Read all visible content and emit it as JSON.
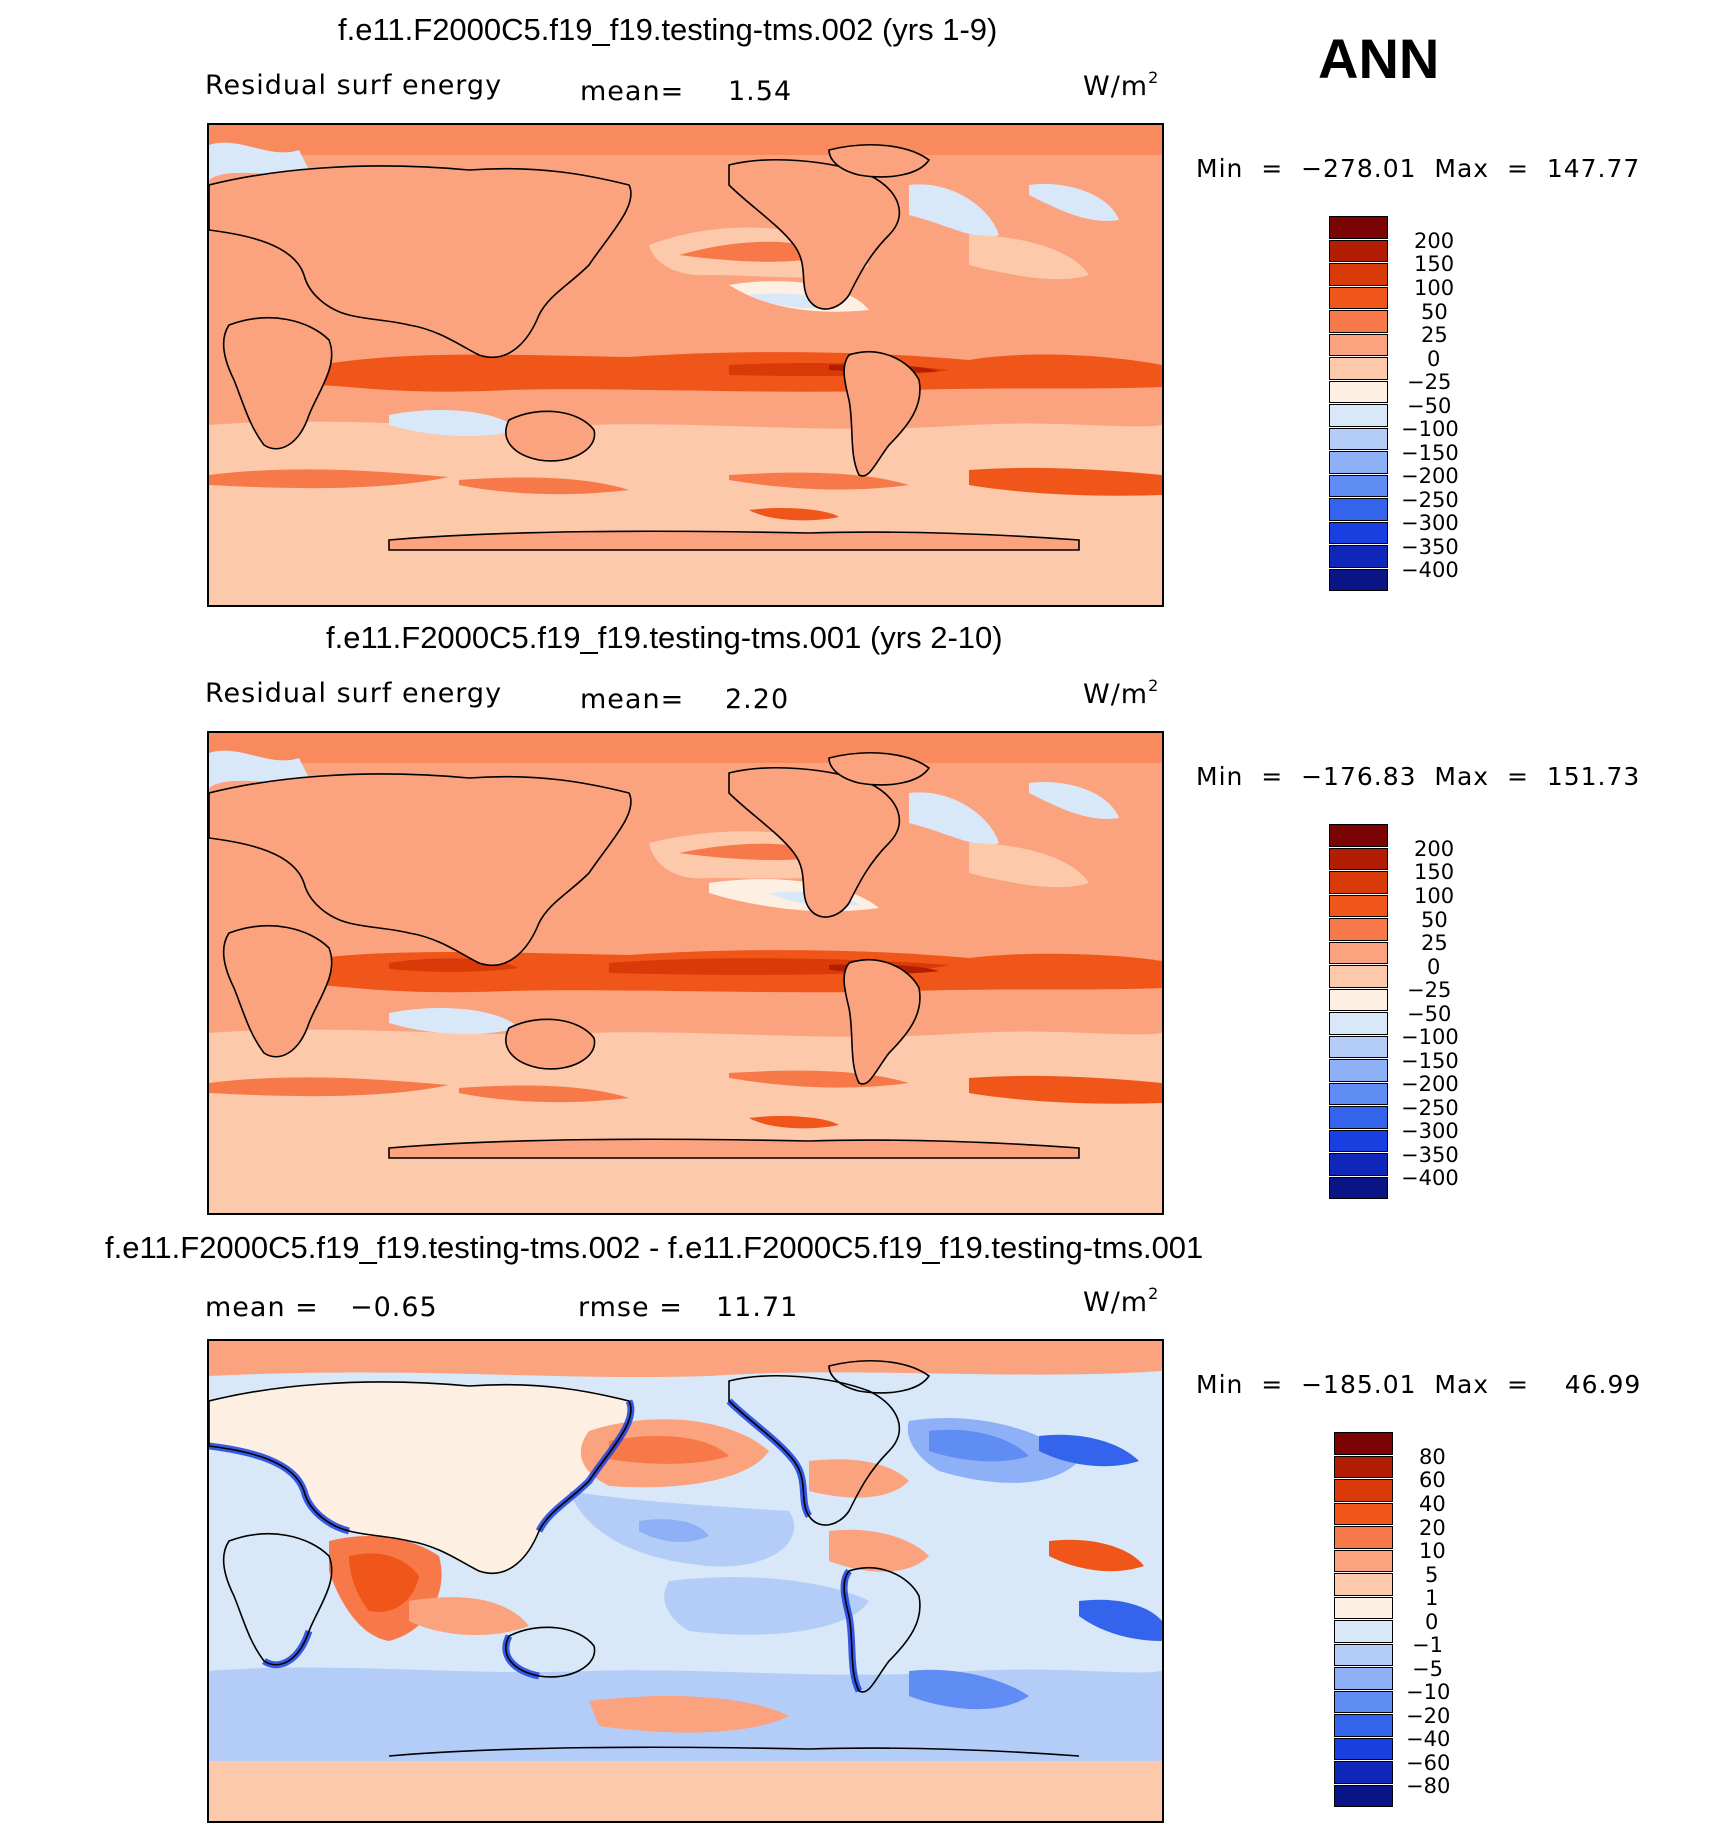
{
  "season": "ANN",
  "units_base": "W/m",
  "units_exp": "2",
  "panels": [
    {
      "title": "f.e11.F2000C5.f19_f19.testing-tms.002 (yrs 1-9)",
      "variable": "Residual surf energy",
      "stat_label": "mean=",
      "stat_value": "1.54",
      "minmax": "Min  =  −278.01  Max  =  147.77",
      "mean_field": 1.54,
      "min": -278.01,
      "max": 147.77
    },
    {
      "title": "f.e11.F2000C5.f19_f19.testing-tms.001 (yrs 2-10)",
      "variable": "Residual surf energy",
      "stat_label": "mean=",
      "stat_value": "2.20",
      "minmax": "Min  =  −176.83  Max  =  151.73",
      "mean_field": 2.2,
      "min": -176.83,
      "max": 151.73
    },
    {
      "title": "f.e11.F2000C5.f19_f19.testing-tms.002 - f.e11.F2000C5.f19_f19.testing-tms.001",
      "mean_label": "mean  =",
      "mean_value": "−0.65",
      "rmse_label": "rmse  =",
      "rmse_value": "11.71",
      "minmax": "Min  =  −185.01  Max  =    46.99",
      "min": -185.01,
      "max": 46.99
    }
  ],
  "colorbar_main": {
    "labels": [
      "200",
      "150",
      "100",
      "50",
      "25",
      "0",
      "−25",
      "−50",
      "−100",
      "−150",
      "−200",
      "−250",
      "−300",
      "−350",
      "−400"
    ],
    "colors": [
      "#7a0403",
      "#b21e04",
      "#d93a08",
      "#f0561a",
      "#f7794a",
      "#fba27e",
      "#fdc9ab",
      "#fdf0e3",
      "#d8e8f8",
      "#b4cdf8",
      "#8eb0f7",
      "#5f8df4",
      "#3463ec",
      "#1a3fe0",
      "#0e27b8",
      "#0a1585"
    ]
  },
  "colorbar_diff": {
    "labels": [
      "80",
      "60",
      "40",
      "20",
      "10",
      "5",
      "1",
      "0",
      "−1",
      "−5",
      "−10",
      "−20",
      "−40",
      "−60",
      "−80"
    ],
    "colors": [
      "#7a0403",
      "#b21e04",
      "#d93a08",
      "#f0561a",
      "#f7794a",
      "#fba27e",
      "#fdc9ab",
      "#fdf0e3",
      "#d8e8f8",
      "#b4cdf8",
      "#8eb0f7",
      "#5f8df4",
      "#3463ec",
      "#1a3fe0",
      "#0e27b8",
      "#0a1585"
    ]
  }
}
